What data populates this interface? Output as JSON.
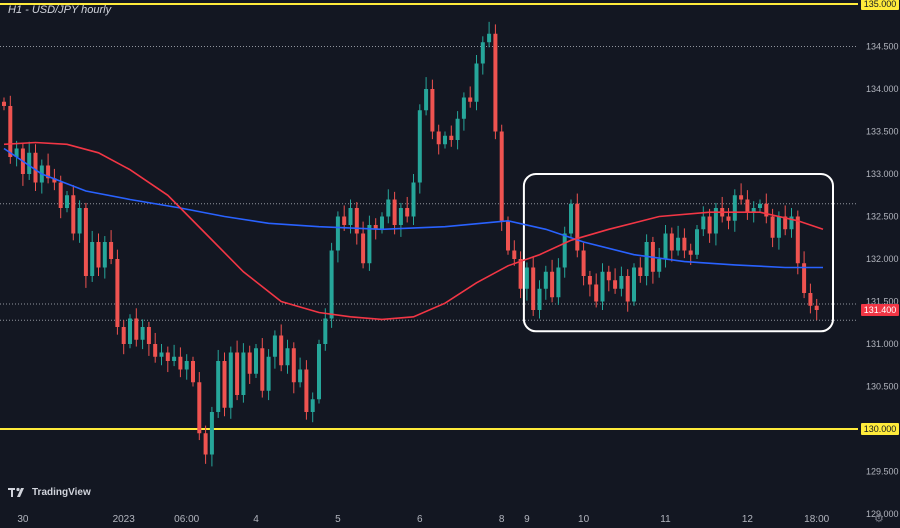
{
  "header": {
    "title": "H1 - USD/JPY hourly"
  },
  "footer": {
    "logo_text": "TradingView"
  },
  "colors": {
    "background": "#131722",
    "up": "#26a69a",
    "down": "#ef5350",
    "ma_fast": "#2962ff",
    "ma_slow": "#f23645",
    "level": "#ffeb3b",
    "axis_text": "#b2b5be"
  },
  "chart_data": {
    "type": "candlestick",
    "title": "H1 - USD/JPY hourly",
    "ylim": [
      129.0,
      135.0
    ],
    "y_ticks": [
      "129.000",
      "129.500",
      "130.000",
      "130.500",
      "131.000",
      "131.500",
      "132.000",
      "132.500",
      "133.000",
      "133.500",
      "134.000",
      "134.500",
      "135.000"
    ],
    "x_ticks": [
      {
        "label": "30",
        "i": 3
      },
      {
        "label": "2023",
        "i": 19
      },
      {
        "label": "06:00",
        "i": 29
      },
      {
        "label": "4",
        "i": 40
      },
      {
        "label": "5",
        "i": 53
      },
      {
        "label": "6",
        "i": 66
      },
      {
        "label": "8",
        "i": 79
      },
      {
        "label": "9",
        "i": 83
      },
      {
        "label": "10",
        "i": 92
      },
      {
        "label": "11",
        "i": 105
      },
      {
        "label": "12",
        "i": 118
      },
      {
        "label": "18:00",
        "i": 129
      }
    ],
    "horizontal_levels": [
      {
        "value": 135.0,
        "label": "135.000",
        "style": "solid",
        "color": "#ffeb3b",
        "badge": true
      },
      {
        "value": 130.0,
        "label": "130.000",
        "style": "solid",
        "color": "#ffeb3b",
        "badge": true
      },
      {
        "value": 134.5,
        "style": "dotted",
        "color": "#b2b5be"
      },
      {
        "value": 132.65,
        "style": "dotted",
        "color": "#b2b5be"
      },
      {
        "value": 131.47,
        "style": "dotted",
        "color": "#b2b5be"
      },
      {
        "value": 131.28,
        "style": "dotted",
        "color": "#b2b5be"
      }
    ],
    "last_price": {
      "value": 131.4,
      "label": "131.400"
    },
    "highlight_box": {
      "i_start": 83,
      "i_end": 130,
      "price_low": 131.15,
      "price_high": 133.0
    },
    "close": [
      133.8,
      133.2,
      133.3,
      133.0,
      133.25,
      132.9,
      133.1,
      132.95,
      132.9,
      132.6,
      132.75,
      132.3,
      132.6,
      131.8,
      132.2,
      131.9,
      132.2,
      132.0,
      131.2,
      131.0,
      131.3,
      131.05,
      131.2,
      131.0,
      130.85,
      130.9,
      130.8,
      130.85,
      130.7,
      130.8,
      130.55,
      129.95,
      129.7,
      130.2,
      130.8,
      130.25,
      130.9,
      130.4,
      130.9,
      130.65,
      130.95,
      130.45,
      130.85,
      131.1,
      130.75,
      130.95,
      130.55,
      130.7,
      130.2,
      130.35,
      131.0,
      131.3,
      132.1,
      132.5,
      132.4,
      132.6,
      132.3,
      131.95,
      132.4,
      132.35,
      132.5,
      132.7,
      132.4,
      132.6,
      132.5,
      132.9,
      133.75,
      134.0,
      133.5,
      133.35,
      133.45,
      133.4,
      133.65,
      133.9,
      133.85,
      134.3,
      134.55,
      134.65,
      133.5,
      132.45,
      132.1,
      132.0,
      131.65,
      131.9,
      131.4,
      131.65,
      131.85,
      131.55,
      131.9,
      132.3,
      132.65,
      132.1,
      131.8,
      131.7,
      131.5,
      131.85,
      131.75,
      131.65,
      131.8,
      131.5,
      131.9,
      131.8,
      132.2,
      131.85,
      132.0,
      132.3,
      132.1,
      132.25,
      132.1,
      132.05,
      132.35,
      132.5,
      132.3,
      132.6,
      132.5,
      132.45,
      132.75,
      132.7,
      132.55,
      132.6,
      132.65,
      132.5,
      132.25,
      132.5,
      132.35,
      132.5,
      131.95,
      131.6,
      131.45,
      131.4
    ],
    "ma_fast": [
      [
        0,
        133.3
      ],
      [
        6,
        133.0
      ],
      [
        13,
        132.8
      ],
      [
        20,
        132.7
      ],
      [
        28,
        132.6
      ],
      [
        35,
        132.5
      ],
      [
        42,
        132.42
      ],
      [
        50,
        132.38
      ],
      [
        60,
        132.35
      ],
      [
        70,
        132.38
      ],
      [
        80,
        132.45
      ],
      [
        86,
        132.35
      ],
      [
        92,
        132.2
      ],
      [
        100,
        132.05
      ],
      [
        108,
        131.97
      ],
      [
        116,
        131.93
      ],
      [
        124,
        131.9
      ],
      [
        130,
        131.9
      ]
    ],
    "ma_slow": [
      [
        0,
        133.35
      ],
      [
        5,
        133.37
      ],
      [
        10,
        133.35
      ],
      [
        15,
        133.25
      ],
      [
        20,
        133.05
      ],
      [
        26,
        132.75
      ],
      [
        32,
        132.3
      ],
      [
        38,
        131.85
      ],
      [
        44,
        131.5
      ],
      [
        50,
        131.37
      ],
      [
        55,
        131.32
      ],
      [
        60,
        131.29
      ],
      [
        65,
        131.32
      ],
      [
        70,
        131.48
      ],
      [
        75,
        131.72
      ],
      [
        80,
        131.92
      ],
      [
        85,
        132.05
      ],
      [
        90,
        132.22
      ],
      [
        96,
        132.35
      ],
      [
        104,
        132.5
      ],
      [
        112,
        132.55
      ],
      [
        120,
        132.55
      ],
      [
        126,
        132.45
      ],
      [
        130,
        132.35
      ]
    ]
  }
}
